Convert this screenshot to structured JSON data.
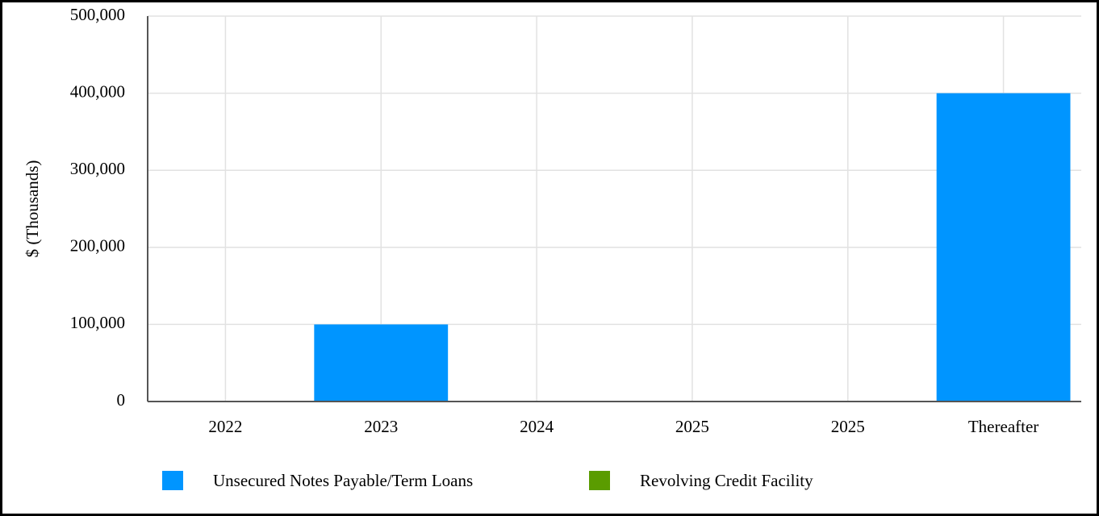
{
  "chart_data": {
    "type": "bar",
    "stacked": true,
    "y_label": "$ (Thousands)",
    "categories": [
      "2022",
      "2023",
      "2024",
      "2025",
      "2025",
      "Thereafter"
    ],
    "series": [
      {
        "name": "Unsecured Notes Payable/Term Loans",
        "color": "#0095ff",
        "values": [
          0,
          100000,
          0,
          0,
          0,
          400000
        ]
      },
      {
        "name": "Revolving Credit Facility",
        "color": "#5a9c00",
        "values": [
          0,
          0,
          0,
          0,
          0,
          0
        ]
      }
    ],
    "ylim": [
      0,
      500000
    ],
    "yticks": [
      0,
      {
        "value": 100000,
        "label": "100,000"
      },
      {
        "value": 200000,
        "label": "200,000"
      },
      {
        "value": 300000,
        "label": "300,000"
      },
      {
        "value": 400000,
        "label": "400,000"
      },
      {
        "value": 500000,
        "label": "500,000"
      }
    ],
    "grid": true,
    "legend": "bottom"
  }
}
